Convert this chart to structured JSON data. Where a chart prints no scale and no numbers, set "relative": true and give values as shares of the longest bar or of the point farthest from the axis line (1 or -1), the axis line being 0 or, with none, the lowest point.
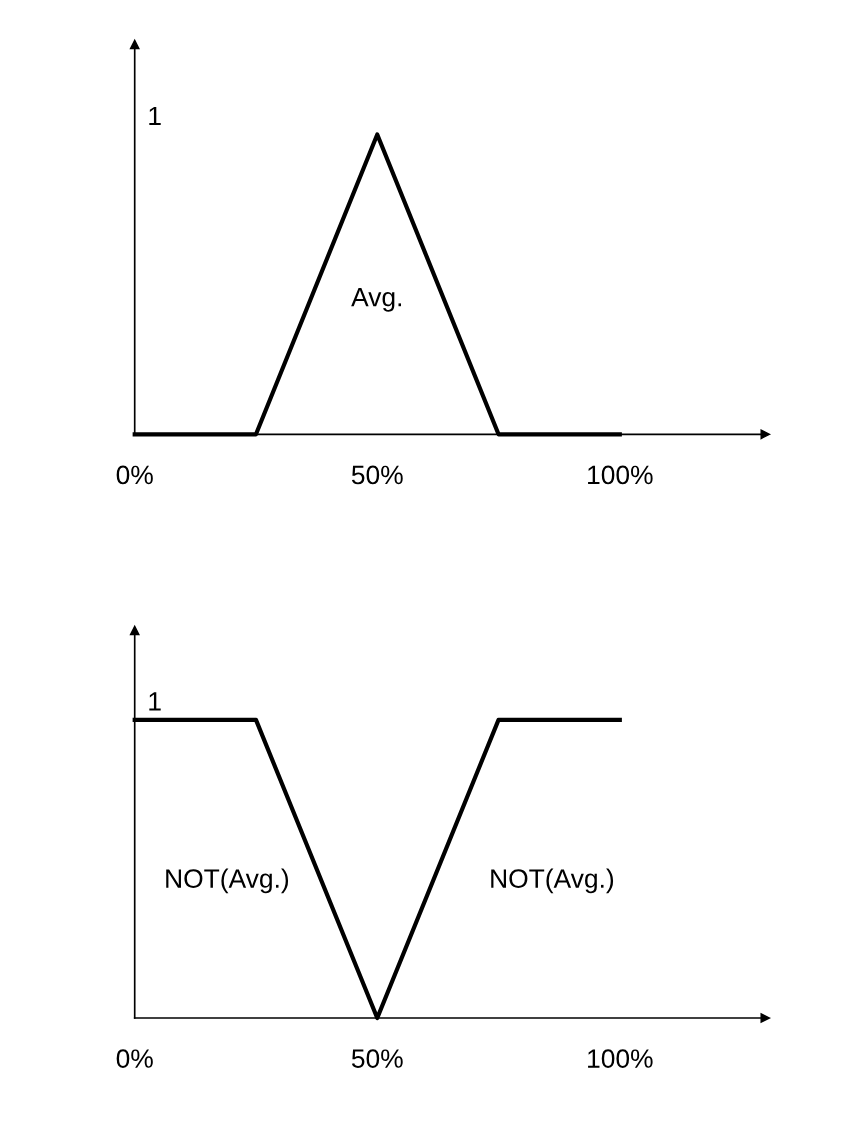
{
  "chart_data": [
    {
      "type": "line",
      "relative": true,
      "x": [
        0,
        25,
        50,
        75,
        100
      ],
      "series": [
        {
          "color": "#000000",
          "values": [
            0,
            0,
            1,
            0,
            0
          ]
        }
      ],
      "xlim": [
        0,
        130
      ],
      "xticks": [
        {
          "value": 0,
          "label": "0%"
        },
        {
          "value": 50,
          "label": "50%"
        },
        {
          "value": 100,
          "label": "100%"
        }
      ],
      "grid": false,
      "legend": false,
      "marker": "none",
      "line_style": "solid",
      "annotations": [
        "1",
        "Avg."
      ]
    },
    {
      "type": "line",
      "relative": true,
      "x": [
        0,
        25,
        50,
        75,
        100
      ],
      "series": [
        {
          "color": "#000000",
          "values": [
            1,
            1,
            0,
            1,
            1
          ]
        }
      ],
      "xlim": [
        0,
        130
      ],
      "xticks": [
        {
          "value": 0,
          "label": "0%"
        },
        {
          "value": 50,
          "label": "50%"
        },
        {
          "value": 100,
          "label": "100%"
        }
      ],
      "grid": false,
      "legend": false,
      "marker": "none",
      "line_style": "solid",
      "annotations": [
        "1",
        "NOT(Avg.)",
        "NOT(Avg.)"
      ]
    }
  ]
}
